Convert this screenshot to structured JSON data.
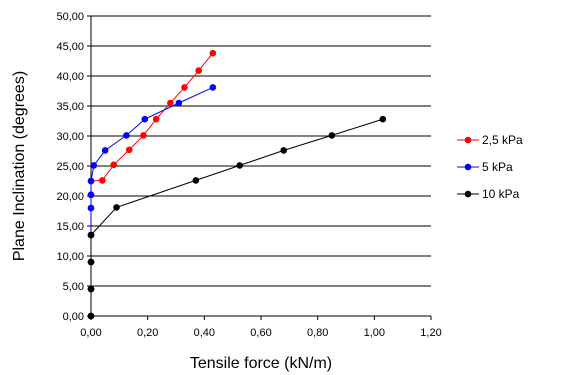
{
  "chart_data": {
    "type": "line",
    "xlabel": "Tensile force (kN/m)",
    "ylabel": "Plane Inclination (degrees)",
    "xlim": [
      0,
      1.2
    ],
    "ylim": [
      0,
      50
    ],
    "x_ticks": [
      "0,00",
      "0,20",
      "0,40",
      "0,60",
      "0,80",
      "1,00",
      "1,20"
    ],
    "y_ticks": [
      "0,00",
      "5,00",
      "10,00",
      "15,00",
      "20,00",
      "25,00",
      "30,00",
      "35,00",
      "40,00",
      "45,00",
      "50,00"
    ],
    "grid": "horizontal",
    "legend_position": "right",
    "series": [
      {
        "name": "2,5 kPa",
        "color": "#ff0000",
        "points": [
          [
            0.0,
            0
          ],
          [
            0.0,
            4.5
          ],
          [
            0.0,
            9
          ],
          [
            0.0,
            13.5
          ],
          [
            0.0,
            18
          ],
          [
            0.0,
            20.2
          ],
          [
            0.0,
            22.5
          ],
          [
            0.04,
            22.6
          ],
          [
            0.08,
            25.2
          ],
          [
            0.135,
            27.7
          ],
          [
            0.185,
            30.1
          ],
          [
            0.23,
            32.8
          ],
          [
            0.28,
            35.5
          ],
          [
            0.33,
            38.1
          ],
          [
            0.38,
            40.9
          ],
          [
            0.43,
            43.8
          ]
        ]
      },
      {
        "name": "5 kPa",
        "color": "#0000ff",
        "points": [
          [
            0.0,
            0
          ],
          [
            0.0,
            4.5
          ],
          [
            0.0,
            9
          ],
          [
            0.0,
            13.5
          ],
          [
            0.0,
            18
          ],
          [
            0.0,
            20.2
          ],
          [
            0.0,
            22.5
          ],
          [
            0.01,
            25.1
          ],
          [
            0.05,
            27.6
          ],
          [
            0.125,
            30.1
          ],
          [
            0.19,
            32.8
          ],
          [
            0.31,
            35.5
          ],
          [
            0.43,
            38.1
          ]
        ]
      },
      {
        "name": "10 kPa",
        "color": "#000000",
        "points": [
          [
            0.0,
            0
          ],
          [
            0.0,
            4.5
          ],
          [
            0.0,
            9
          ],
          [
            0.0,
            13.5
          ],
          [
            0.09,
            18.1
          ],
          [
            0.37,
            22.6
          ],
          [
            0.525,
            25.1
          ],
          [
            0.68,
            27.6
          ],
          [
            0.85,
            30.1
          ],
          [
            1.03,
            32.8
          ]
        ]
      }
    ]
  }
}
